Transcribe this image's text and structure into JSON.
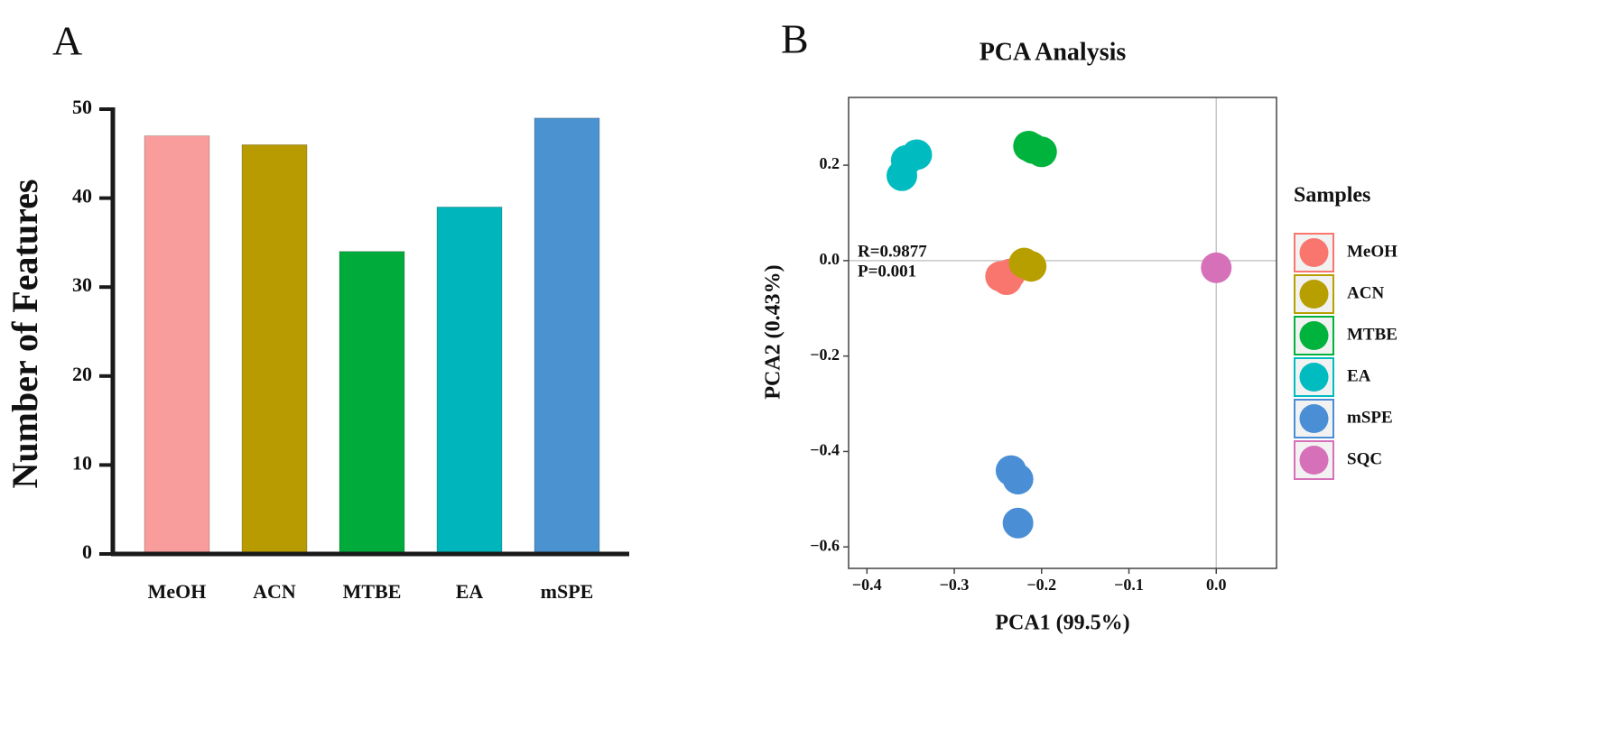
{
  "chart_data": [
    {
      "type": "bar",
      "panel_label": "A",
      "ylabel": "Number of Features",
      "categories": [
        "MeOH",
        "ACN",
        "MTBE",
        "EA",
        "mSPE"
      ],
      "values": [
        47,
        46,
        34,
        39,
        49
      ],
      "colors": [
        "#f89c9c",
        "#b89b00",
        "#00ab3b",
        "#00b5bb",
        "#4a93d0"
      ],
      "ylim": [
        0,
        50
      ],
      "yticks": [
        0,
        10,
        20,
        30,
        40,
        50
      ]
    },
    {
      "type": "scatter",
      "panel_label": "B",
      "title": "PCA Analysis",
      "xlabel": "PCA1 (99.5%)",
      "ylabel": "PCA2 (0.43%)",
      "annotations": [
        "R=0.9877",
        "P=0.001"
      ],
      "legend_title": "Samples",
      "series": [
        {
          "name": "MeOH",
          "color": "#f8766d",
          "x": [
            -0.247,
            -0.24,
            -0.236
          ],
          "values": [
            -0.033,
            -0.04,
            -0.028
          ]
        },
        {
          "name": "ACN",
          "color": "#b79f00",
          "x": [
            -0.22,
            -0.212
          ],
          "values": [
            -0.005,
            -0.012
          ]
        },
        {
          "name": "MTBE",
          "color": "#00b33c",
          "x": [
            -0.215,
            -0.21,
            -0.2
          ],
          "values": [
            0.24,
            0.235,
            0.228
          ]
        },
        {
          "name": "EA",
          "color": "#00bcc0",
          "x": [
            -0.36,
            -0.355,
            -0.343
          ],
          "values": [
            0.178,
            0.21,
            0.222
          ]
        },
        {
          "name": "mSPE",
          "color": "#4a8fd6",
          "x": [
            -0.235,
            -0.227,
            -0.227
          ],
          "values": [
            -0.44,
            -0.458,
            -0.55
          ]
        },
        {
          "name": "SQC",
          "color": "#d670b8",
          "x": [
            0
          ],
          "values": [
            -0.015
          ]
        }
      ],
      "xlim": [
        -0.421,
        0.069
      ],
      "ylim": [
        -0.645,
        0.342
      ],
      "xticks": [
        {
          "value": -0.4,
          "label": "−0.4"
        },
        {
          "value": -0.3,
          "label": "−0.3"
        },
        {
          "value": -0.2,
          "label": "−0.2"
        },
        {
          "value": -0.1,
          "label": "−0.1"
        },
        {
          "value": 0,
          "label": "0.0"
        }
      ],
      "yticks": [
        {
          "value": -0.6,
          "label": "−0.6"
        },
        {
          "value": -0.4,
          "label": "−0.4"
        },
        {
          "value": -0.2,
          "label": "−0.2"
        },
        {
          "value": 0,
          "label": "0.0"
        },
        {
          "value": 0.2,
          "label": "0.2"
        }
      ]
    }
  ]
}
